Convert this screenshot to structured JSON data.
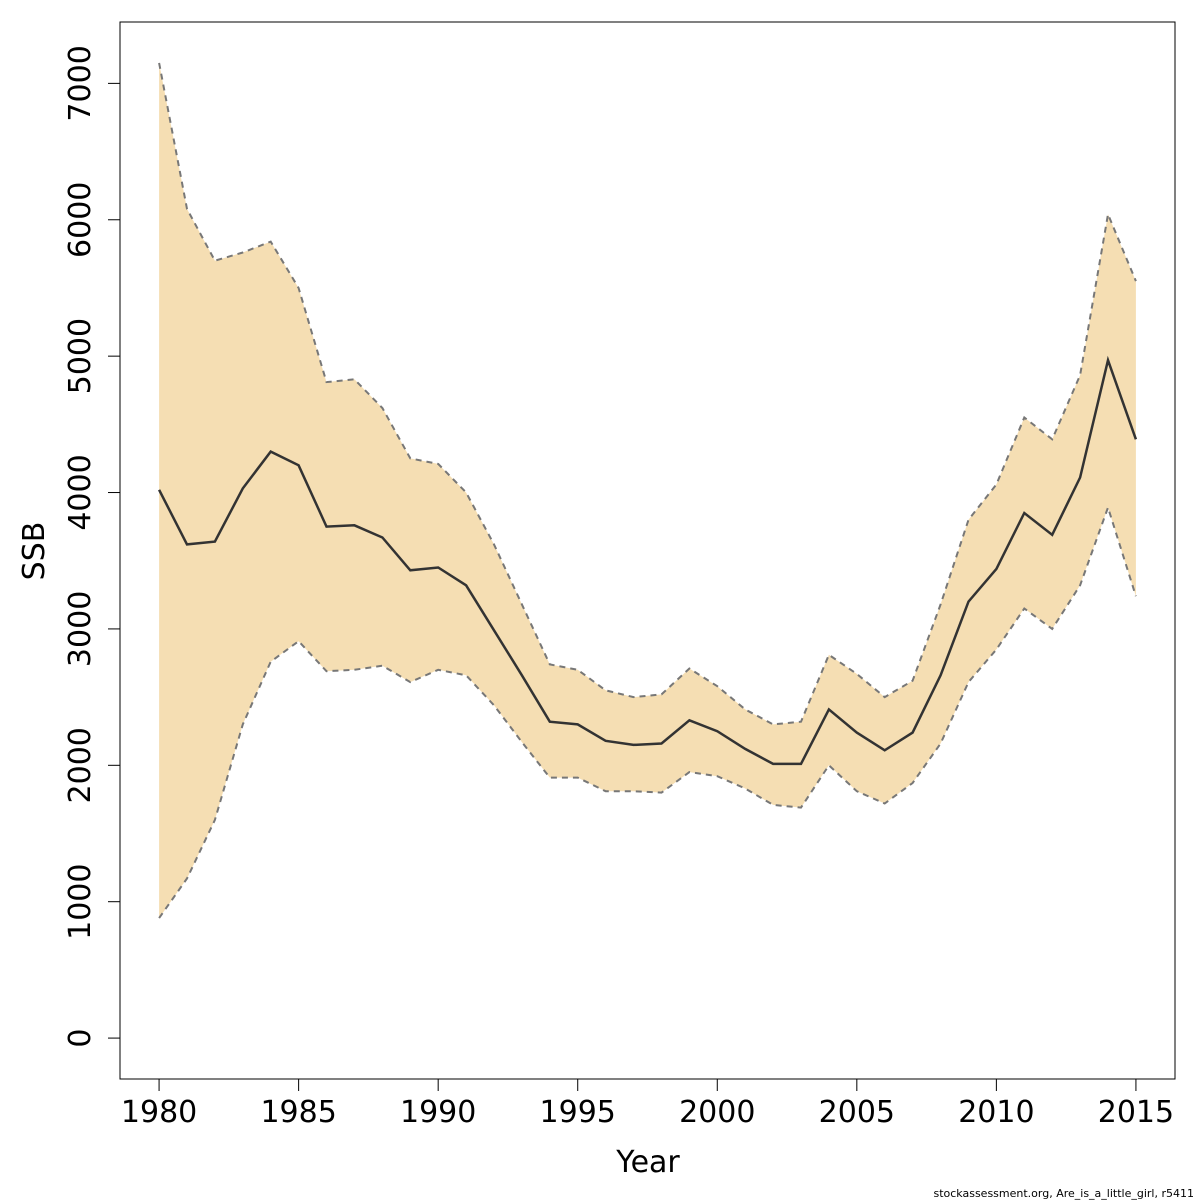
{
  "chart_data": {
    "type": "line",
    "title": "",
    "xlabel": "Year",
    "ylabel": "SSB",
    "xlim": [
      1978.6,
      2016.4
    ],
    "ylim": [
      -300,
      7450
    ],
    "x_ticks": [
      1980,
      1985,
      1990,
      1995,
      2000,
      2005,
      2010,
      2015
    ],
    "x_tick_labels": [
      "1980",
      "1985",
      "1990",
      "1995",
      "2000",
      "2005",
      "2010",
      "2015"
    ],
    "y_ticks": [
      0,
      1000,
      2000,
      3000,
      4000,
      5000,
      6000,
      7000
    ],
    "y_tick_labels": [
      "0",
      "1000",
      "2000",
      "3000",
      "4000",
      "5000",
      "6000",
      "7000"
    ],
    "grid": false,
    "x": [
      1980,
      1981,
      1982,
      1983,
      1984,
      1985,
      1986,
      1987,
      1988,
      1989,
      1990,
      1991,
      1992,
      1993,
      1994,
      1995,
      1996,
      1997,
      1998,
      1999,
      2000,
      2001,
      2002,
      2003,
      2004,
      2005,
      2006,
      2007,
      2008,
      2009,
      2010,
      2011,
      2012,
      2013,
      2014,
      2015
    ],
    "series": [
      {
        "values": [
          4020,
          3620,
          3640,
          4030,
          4300,
          4200,
          3750,
          3760,
          3670,
          3430,
          3450,
          3320,
          2990,
          2660,
          2320,
          2300,
          2180,
          2150,
          2160,
          2330,
          2250,
          2120,
          2010,
          2010,
          2410,
          2240,
          2110,
          2240,
          2660,
          3200,
          3440,
          3850,
          3690,
          4110,
          4970,
          4390
        ]
      },
      {
        "values": [
          7150,
          6080,
          5700,
          5760,
          5840,
          5500,
          4810,
          4830,
          4620,
          4250,
          4210,
          4000,
          3620,
          3180,
          2740,
          2700,
          2550,
          2500,
          2520,
          2710,
          2580,
          2410,
          2300,
          2320,
          2810,
          2670,
          2500,
          2620,
          3180,
          3800,
          4060,
          4550,
          4390,
          4860,
          6040,
          5550
        ]
      },
      {
        "values": [
          880,
          1170,
          1600,
          2300,
          2760,
          2910,
          2690,
          2700,
          2730,
          2610,
          2700,
          2660,
          2440,
          2170,
          1910,
          1910,
          1810,
          1810,
          1800,
          1950,
          1920,
          1830,
          1710,
          1690,
          2000,
          1810,
          1720,
          1870,
          2160,
          2610,
          2850,
          3150,
          3000,
          3320,
          3890,
          3240
        ]
      }
    ],
    "colors": {
      "band_fill": "#f5deb3",
      "bound_line": "#777777",
      "main_line": "#333333",
      "axis": "#000000"
    }
  },
  "footer": {
    "text": "stockassessment.org, Are_is_a_little_girl, r5411"
  }
}
